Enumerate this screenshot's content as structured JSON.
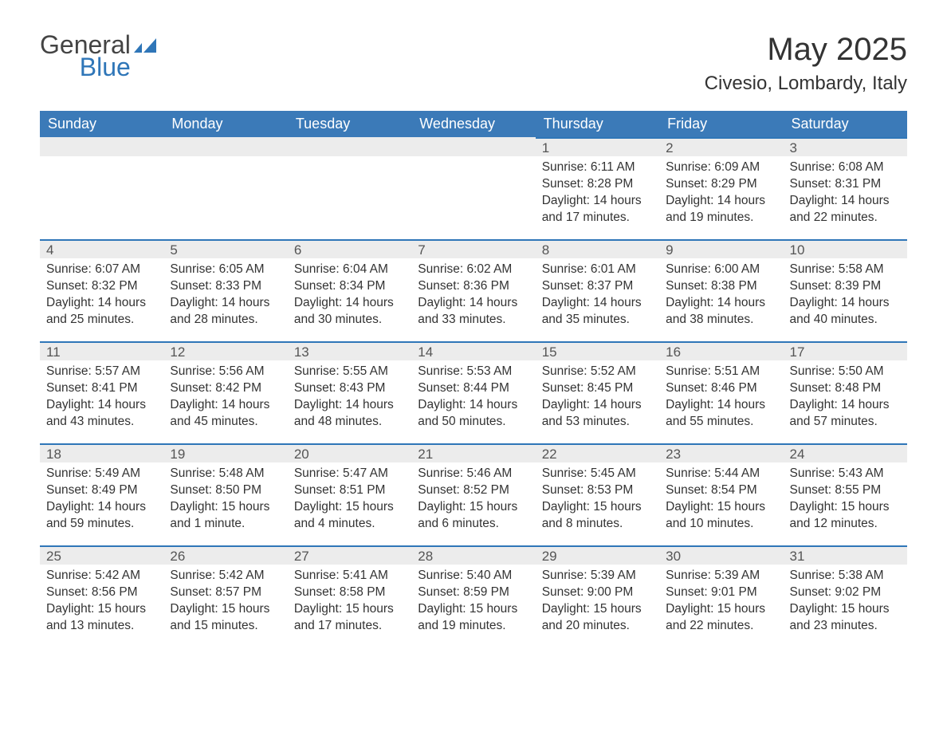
{
  "brand": {
    "word1": "General",
    "word2": "Blue",
    "logo_color": "#2f76b8",
    "text_color": "#444444"
  },
  "title": "May 2025",
  "location": "Civesio, Lombardy, Italy",
  "theme": {
    "header_bg": "#3b7ab8",
    "header_text": "#ffffff",
    "daynum_bg": "#ececec",
    "daynum_border": "#2f76b8",
    "body_text": "#333333",
    "page_bg": "#ffffff",
    "font_size_title": 40,
    "font_size_location": 24,
    "font_size_header": 18,
    "font_size_cell": 15.5
  },
  "weekdays": [
    "Sunday",
    "Monday",
    "Tuesday",
    "Wednesday",
    "Thursday",
    "Friday",
    "Saturday"
  ],
  "first_weekday_index": 4,
  "days": [
    {
      "n": 1,
      "sunrise": "6:11 AM",
      "sunset": "8:28 PM",
      "daylight": "14 hours and 17 minutes."
    },
    {
      "n": 2,
      "sunrise": "6:09 AM",
      "sunset": "8:29 PM",
      "daylight": "14 hours and 19 minutes."
    },
    {
      "n": 3,
      "sunrise": "6:08 AM",
      "sunset": "8:31 PM",
      "daylight": "14 hours and 22 minutes."
    },
    {
      "n": 4,
      "sunrise": "6:07 AM",
      "sunset": "8:32 PM",
      "daylight": "14 hours and 25 minutes."
    },
    {
      "n": 5,
      "sunrise": "6:05 AM",
      "sunset": "8:33 PM",
      "daylight": "14 hours and 28 minutes."
    },
    {
      "n": 6,
      "sunrise": "6:04 AM",
      "sunset": "8:34 PM",
      "daylight": "14 hours and 30 minutes."
    },
    {
      "n": 7,
      "sunrise": "6:02 AM",
      "sunset": "8:36 PM",
      "daylight": "14 hours and 33 minutes."
    },
    {
      "n": 8,
      "sunrise": "6:01 AM",
      "sunset": "8:37 PM",
      "daylight": "14 hours and 35 minutes."
    },
    {
      "n": 9,
      "sunrise": "6:00 AM",
      "sunset": "8:38 PM",
      "daylight": "14 hours and 38 minutes."
    },
    {
      "n": 10,
      "sunrise": "5:58 AM",
      "sunset": "8:39 PM",
      "daylight": "14 hours and 40 minutes."
    },
    {
      "n": 11,
      "sunrise": "5:57 AM",
      "sunset": "8:41 PM",
      "daylight": "14 hours and 43 minutes."
    },
    {
      "n": 12,
      "sunrise": "5:56 AM",
      "sunset": "8:42 PM",
      "daylight": "14 hours and 45 minutes."
    },
    {
      "n": 13,
      "sunrise": "5:55 AM",
      "sunset": "8:43 PM",
      "daylight": "14 hours and 48 minutes."
    },
    {
      "n": 14,
      "sunrise": "5:53 AM",
      "sunset": "8:44 PM",
      "daylight": "14 hours and 50 minutes."
    },
    {
      "n": 15,
      "sunrise": "5:52 AM",
      "sunset": "8:45 PM",
      "daylight": "14 hours and 53 minutes."
    },
    {
      "n": 16,
      "sunrise": "5:51 AM",
      "sunset": "8:46 PM",
      "daylight": "14 hours and 55 minutes."
    },
    {
      "n": 17,
      "sunrise": "5:50 AM",
      "sunset": "8:48 PM",
      "daylight": "14 hours and 57 minutes."
    },
    {
      "n": 18,
      "sunrise": "5:49 AM",
      "sunset": "8:49 PM",
      "daylight": "14 hours and 59 minutes."
    },
    {
      "n": 19,
      "sunrise": "5:48 AM",
      "sunset": "8:50 PM",
      "daylight": "15 hours and 1 minute."
    },
    {
      "n": 20,
      "sunrise": "5:47 AM",
      "sunset": "8:51 PM",
      "daylight": "15 hours and 4 minutes."
    },
    {
      "n": 21,
      "sunrise": "5:46 AM",
      "sunset": "8:52 PM",
      "daylight": "15 hours and 6 minutes."
    },
    {
      "n": 22,
      "sunrise": "5:45 AM",
      "sunset": "8:53 PM",
      "daylight": "15 hours and 8 minutes."
    },
    {
      "n": 23,
      "sunrise": "5:44 AM",
      "sunset": "8:54 PM",
      "daylight": "15 hours and 10 minutes."
    },
    {
      "n": 24,
      "sunrise": "5:43 AM",
      "sunset": "8:55 PM",
      "daylight": "15 hours and 12 minutes."
    },
    {
      "n": 25,
      "sunrise": "5:42 AM",
      "sunset": "8:56 PM",
      "daylight": "15 hours and 13 minutes."
    },
    {
      "n": 26,
      "sunrise": "5:42 AM",
      "sunset": "8:57 PM",
      "daylight": "15 hours and 15 minutes."
    },
    {
      "n": 27,
      "sunrise": "5:41 AM",
      "sunset": "8:58 PM",
      "daylight": "15 hours and 17 minutes."
    },
    {
      "n": 28,
      "sunrise": "5:40 AM",
      "sunset": "8:59 PM",
      "daylight": "15 hours and 19 minutes."
    },
    {
      "n": 29,
      "sunrise": "5:39 AM",
      "sunset": "9:00 PM",
      "daylight": "15 hours and 20 minutes."
    },
    {
      "n": 30,
      "sunrise": "5:39 AM",
      "sunset": "9:01 PM",
      "daylight": "15 hours and 22 minutes."
    },
    {
      "n": 31,
      "sunrise": "5:38 AM",
      "sunset": "9:02 PM",
      "daylight": "15 hours and 23 minutes."
    }
  ],
  "labels": {
    "sunrise": "Sunrise:",
    "sunset": "Sunset:",
    "daylight": "Daylight:"
  }
}
